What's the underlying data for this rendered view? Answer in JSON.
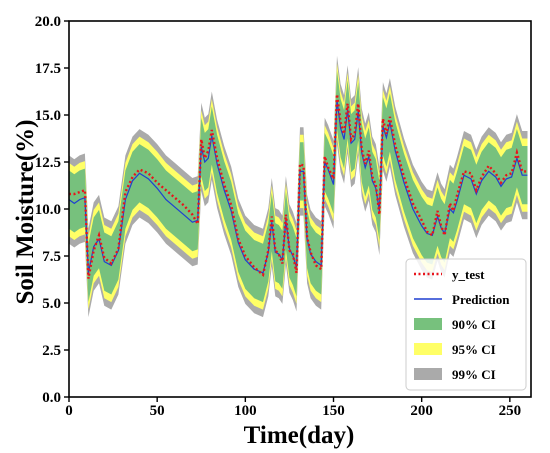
{
  "chart_data": {
    "type": "line",
    "title": "",
    "xlabel": "Time(day)",
    "ylabel": "Soil Moisture(%)",
    "xlim": [
      0,
      262
    ],
    "ylim": [
      0,
      20
    ],
    "x_ticks": [
      "0",
      "50",
      "100",
      "150",
      "200",
      "250"
    ],
    "y_ticks": [
      "0.0",
      "2.5",
      "5.0",
      "7.5",
      "10.0",
      "12.5",
      "15.0",
      "17.5",
      "20.0"
    ],
    "grid": false,
    "legend_position": "bottom-right",
    "band_offsets": {
      "ci90": 1.55,
      "ci95": 1.95,
      "ci99": 2.35
    },
    "series": [
      {
        "name": "y_test",
        "style": "dotted",
        "color": "#e8141b",
        "x": [
          0,
          3,
          6,
          9,
          11,
          14,
          17,
          20,
          24,
          28,
          32,
          36,
          40,
          45,
          50,
          55,
          60,
          65,
          70,
          73,
          75,
          77,
          79,
          81,
          84,
          88,
          92,
          96,
          100,
          105,
          110,
          113,
          115,
          117,
          119,
          121,
          123,
          125,
          127,
          129,
          131,
          133,
          135,
          137,
          140,
          143,
          145,
          147,
          150,
          152,
          154,
          156,
          158,
          160,
          162,
          164,
          166,
          168,
          170,
          172,
          174,
          176,
          178,
          180,
          182,
          185,
          190,
          195,
          200,
          203,
          206,
          209,
          211,
          213,
          216,
          218,
          220,
          224,
          228,
          231,
          234,
          238,
          242,
          245,
          248,
          251,
          254,
          257,
          260
        ],
        "values": [
          10.8,
          10.8,
          10.9,
          11.0,
          6.3,
          7.8,
          8.6,
          7.4,
          7.1,
          7.9,
          10.9,
          11.7,
          12.1,
          11.9,
          11.4,
          11.0,
          10.6,
          10.2,
          9.7,
          9.2,
          13.7,
          12.7,
          13.1,
          14.2,
          12.7,
          11.3,
          10.2,
          8.4,
          7.5,
          6.9,
          6.5,
          7.8,
          9.6,
          7.8,
          7.6,
          7.1,
          9.7,
          7.8,
          7.6,
          6.6,
          12.4,
          12.3,
          8.5,
          7.7,
          7.0,
          6.8,
          12.8,
          12.2,
          11.6,
          16.1,
          14.6,
          14.0,
          15.6,
          13.7,
          14.0,
          15.6,
          13.2,
          12.4,
          13.1,
          11.7,
          11.3,
          9.7,
          14.8,
          14.0,
          14.9,
          13.4,
          11.7,
          10.3,
          9.4,
          8.8,
          8.6,
          9.9,
          9.1,
          8.6,
          10.3,
          9.9,
          10.7,
          12.0,
          11.9,
          11.0,
          11.7,
          12.3,
          11.9,
          11.4,
          11.8,
          11.9,
          13.0,
          12.0,
          12.0
        ]
      },
      {
        "name": "Prediction",
        "style": "solid",
        "color": "#1f3fd1",
        "x": [
          0,
          3,
          6,
          9,
          11,
          14,
          17,
          20,
          24,
          28,
          32,
          36,
          40,
          45,
          50,
          55,
          60,
          65,
          70,
          73,
          75,
          77,
          79,
          81,
          84,
          88,
          92,
          96,
          100,
          105,
          110,
          113,
          115,
          117,
          119,
          121,
          123,
          125,
          127,
          129,
          131,
          133,
          135,
          137,
          140,
          143,
          145,
          147,
          150,
          152,
          154,
          156,
          158,
          160,
          162,
          164,
          166,
          168,
          170,
          172,
          174,
          176,
          178,
          180,
          182,
          185,
          190,
          195,
          200,
          203,
          206,
          209,
          211,
          213,
          216,
          218,
          220,
          224,
          228,
          231,
          234,
          238,
          242,
          245,
          248,
          251,
          254,
          257,
          260
        ],
        "values": [
          10.5,
          10.3,
          10.5,
          10.6,
          6.6,
          8.0,
          8.4,
          7.2,
          7.0,
          7.8,
          10.5,
          11.5,
          11.9,
          11.6,
          11.1,
          10.5,
          10.1,
          9.7,
          9.3,
          9.4,
          13.3,
          12.5,
          12.7,
          13.9,
          12.4,
          11.0,
          9.9,
          8.2,
          7.3,
          6.8,
          6.6,
          7.7,
          9.3,
          7.7,
          7.6,
          7.3,
          9.4,
          7.9,
          7.5,
          6.9,
          12.0,
          12.0,
          8.4,
          7.6,
          7.2,
          7.0,
          12.5,
          12.1,
          11.3,
          15.8,
          14.3,
          13.7,
          15.3,
          13.5,
          13.7,
          15.2,
          13.0,
          12.2,
          12.8,
          11.5,
          11.1,
          9.9,
          14.4,
          13.8,
          14.6,
          13.1,
          11.4,
          10.0,
          9.1,
          8.7,
          8.6,
          9.6,
          9.0,
          8.7,
          10.0,
          9.8,
          10.4,
          11.8,
          11.6,
          10.8,
          11.5,
          12.0,
          11.7,
          11.2,
          11.6,
          11.7,
          12.7,
          11.8,
          11.8
        ]
      }
    ],
    "legend": [
      {
        "label": "y_test",
        "kind": "line",
        "style": "dotted",
        "color": "#e8141b"
      },
      {
        "label": "Prediction",
        "kind": "line",
        "style": "solid",
        "color": "#1f3fd1"
      },
      {
        "label": "90% CI",
        "kind": "patch",
        "color": "#77c17d"
      },
      {
        "label": "95% CI",
        "kind": "patch",
        "color": "#ffff66"
      },
      {
        "label": "99% CI",
        "kind": "patch",
        "color": "#aaaaaa"
      }
    ],
    "colors": {
      "ci90": "#77c17d",
      "ci95": "#ffff66",
      "ci99": "#aaaaaa"
    }
  }
}
